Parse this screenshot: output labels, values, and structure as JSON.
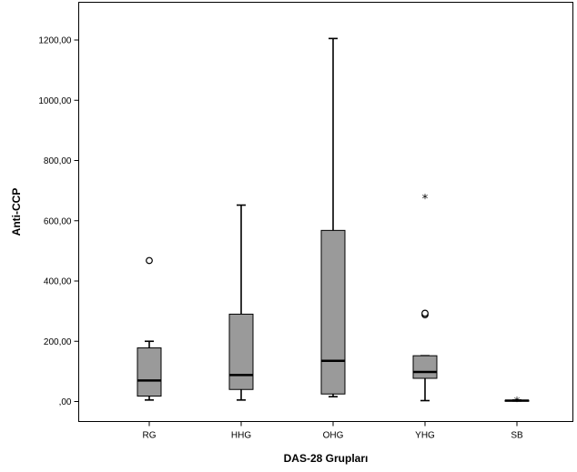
{
  "chart_data": {
    "type": "boxplot",
    "xlabel": "DAS-28 Grupları",
    "ylabel": "Anti-CCP",
    "ylim": [
      -70,
      1310
    ],
    "yticks": [
      0,
      200,
      400,
      600,
      800,
      1000,
      1200
    ],
    "ytick_labels": [
      ",00",
      "200,00",
      "400,00",
      "600,00",
      "800,00",
      "1000,00",
      "1200,00"
    ],
    "grid": false,
    "box_color": "#9a9a9a",
    "categories": [
      "RG",
      "HHG",
      "OHG",
      "YHG",
      "SB"
    ],
    "boxes": [
      {
        "label": "RG",
        "whisker_low": 5,
        "q1": 18,
        "median": 70,
        "q3": 178,
        "whisker_high": 200,
        "outliers": [
          {
            "value": 468,
            "marker": "circle"
          }
        ]
      },
      {
        "label": "HHG",
        "whisker_low": 5,
        "q1": 40,
        "median": 88,
        "q3": 290,
        "whisker_high": 652,
        "outliers": []
      },
      {
        "label": "OHG",
        "whisker_low": 16,
        "q1": 25,
        "median": 135,
        "q3": 568,
        "whisker_high": 1205,
        "outliers": []
      },
      {
        "label": "YHG",
        "whisker_low": 3,
        "q1": 77,
        "median": 98,
        "q3": 152,
        "whisker_high": 152,
        "outliers": [
          {
            "value": 288,
            "marker": "circle"
          },
          {
            "value": 293,
            "marker": "circle"
          },
          {
            "value": 675,
            "marker": "star"
          }
        ]
      },
      {
        "label": "SB",
        "whisker_low": 2,
        "q1": 2,
        "median": 3,
        "q3": 4,
        "whisker_high": 5,
        "outliers": [
          {
            "value": 2,
            "marker": "star"
          }
        ]
      }
    ]
  }
}
